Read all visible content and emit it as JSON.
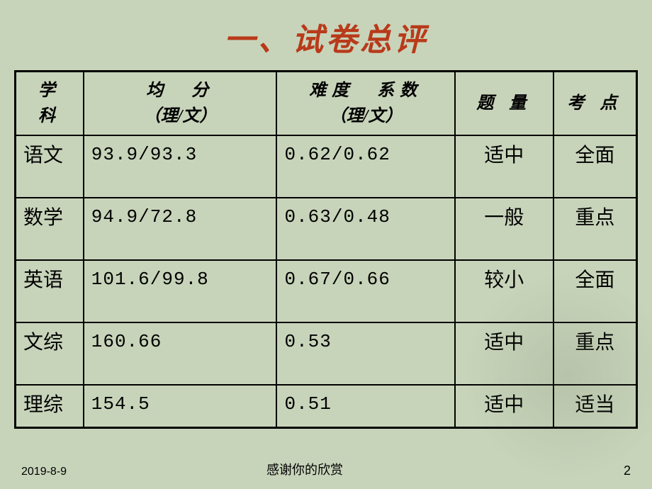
{
  "title": "一、试卷总评",
  "table": {
    "headers": {
      "subject": "学 科",
      "score_line1": "均　分",
      "score_line2": "（理/文）",
      "difficulty_line1": "难度　系数",
      "difficulty_line2": "（理/文）",
      "amount": "题 量",
      "point": "考 点"
    },
    "rows": [
      {
        "subject": "语文",
        "score": "93.9/93.3",
        "difficulty": "0.62/0.62",
        "amount": "适中",
        "point": "全面"
      },
      {
        "subject": "数学",
        "score": "94.9/72.8",
        "difficulty": "0.63/0.48",
        "amount": "一般",
        "point": "重点"
      },
      {
        "subject": "英语",
        "score": "101.6/99.8",
        "difficulty": "0.67/0.66",
        "amount": "较小",
        "point": "全面"
      },
      {
        "subject": "文综",
        "score": "160.66",
        "difficulty": "0.53",
        "amount": "适中",
        "point": "重点"
      },
      {
        "subject": "理综",
        "score": "154.5",
        "difficulty": "0.51",
        "amount": "适中",
        "point": "适当"
      }
    ]
  },
  "footer": {
    "date": "2019-8-9",
    "text": "感谢你的欣赏",
    "page": "2"
  },
  "colors": {
    "background": "#c8d4ba",
    "title": "#b83a1a",
    "border": "#000000",
    "text": "#000000"
  }
}
